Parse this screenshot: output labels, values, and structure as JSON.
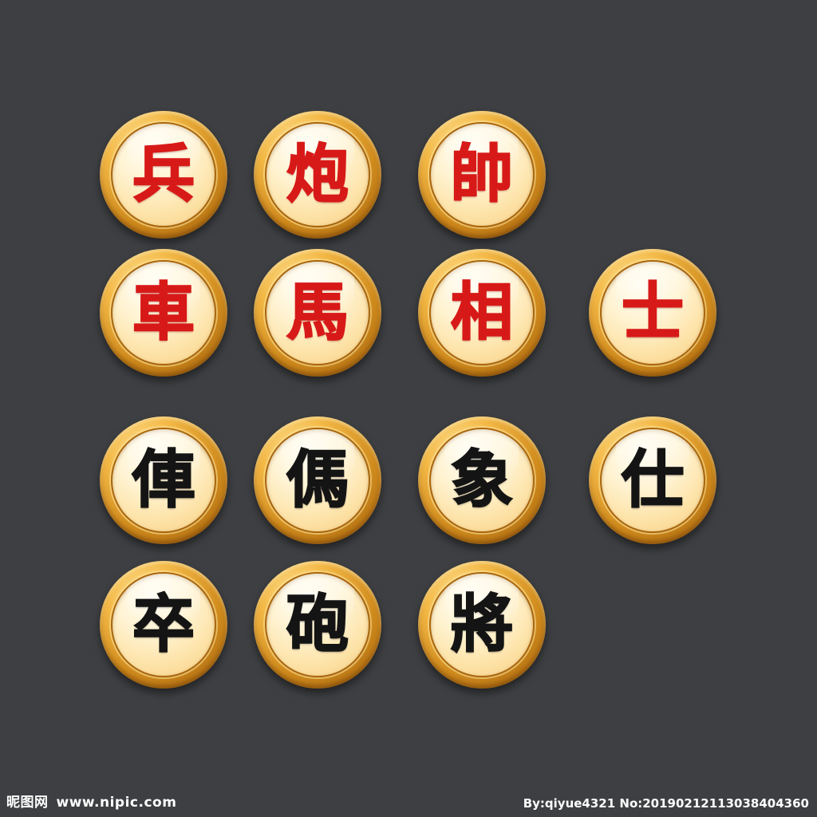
{
  "background_color": "#3d3f42",
  "colors": {
    "red_text": "#d71918",
    "black_text": "#141414",
    "gold_rim": "#cf8a1c",
    "face": "#fff3d2"
  },
  "pieces": {
    "red_soldier": "兵",
    "red_cannon": "炮",
    "red_general": "帥",
    "red_chariot": "車",
    "red_horse": "馬",
    "red_elephant": "相",
    "red_advisor": "士",
    "black_chariot": "俥",
    "black_horse": "傌",
    "black_elephant": "象",
    "black_advisor": "仕",
    "black_soldier": "卒",
    "black_cannon": "砲",
    "black_general": "將"
  },
  "watermark": {
    "site_name": "昵图网",
    "site_url": "www.nipic.com",
    "credit": "By:qiyue4321 No:20190212113038404360"
  }
}
